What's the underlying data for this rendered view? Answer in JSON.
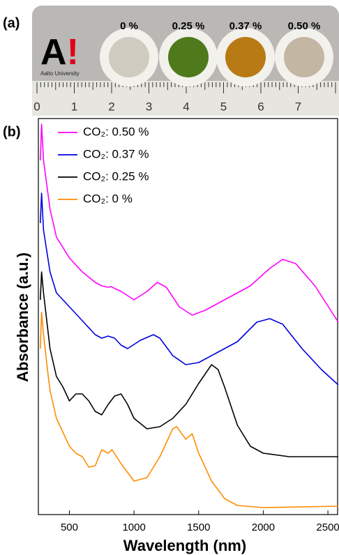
{
  "photo": {
    "panel_label": "(a)",
    "logo": [
      "A",
      "!"
    ],
    "logo_caption": "Aalto University",
    "samples": [
      "0 %",
      "0.25 %",
      "0.37 %",
      "0.50 %"
    ],
    "ruler_numbers": [
      "0",
      "1",
      "2",
      "3",
      "4",
      "5",
      "6",
      "7"
    ]
  },
  "chart_data": {
    "type": "line",
    "panel_label": "(b)",
    "x_label": "Wavelength (nm)",
    "y_label": "Absorbance (a.u.)",
    "xlim": [
      260,
      2575
    ],
    "xticks": [
      500,
      1000,
      1500,
      2000,
      2500
    ],
    "ylim": [
      0,
      568
    ],
    "legend": "upper left",
    "series": [
      {
        "name": "CO₂: 0.50 %",
        "color": "#ff00ff",
        "x": [
          275,
          285,
          300,
          350,
          400,
          500,
          600,
          700,
          750,
          800,
          820,
          900,
          1000,
          1100,
          1180,
          1250,
          1350,
          1450,
          1550,
          1700,
          1900,
          2050,
          2150,
          2250,
          2400,
          2580
        ],
        "values": [
          508,
          560,
          508,
          438,
          398,
          368,
          348,
          333,
          328,
          326,
          327,
          320,
          308,
          320,
          333,
          326,
          298,
          286,
          293,
          308,
          328,
          353,
          366,
          360,
          328,
          276
        ]
      },
      {
        "name": "CO₂: 0.37 %",
        "color": "#0000e0",
        "x": [
          275,
          285,
          300,
          350,
          400,
          500,
          600,
          700,
          750,
          800,
          850,
          900,
          950,
          1050,
          1150,
          1200,
          1300,
          1400,
          1500,
          1650,
          1800,
          1950,
          2050,
          2150,
          2300,
          2450,
          2580
        ],
        "values": [
          418,
          461,
          408,
          348,
          318,
          298,
          278,
          258,
          253,
          256,
          253,
          243,
          238,
          250,
          258,
          253,
          228,
          215,
          218,
          233,
          248,
          276,
          281,
          273,
          238,
          208,
          186
        ]
      },
      {
        "name": "CO₂: 0.25 %",
        "color": "#000000",
        "x": [
          275,
          285,
          300,
          350,
          400,
          450,
          500,
          550,
          600,
          650,
          700,
          750,
          800,
          850,
          900,
          950,
          1000,
          1100,
          1200,
          1300,
          1400,
          1500,
          1600,
          1650,
          1700,
          1800,
          1900,
          2000,
          2200,
          2580
        ],
        "values": [
          308,
          348,
          318,
          238,
          198,
          183,
          163,
          173,
          173,
          163,
          148,
          143,
          158,
          170,
          173,
          158,
          138,
          123,
          126,
          138,
          158,
          188,
          215,
          208,
          183,
          128,
          98,
          88,
          83,
          83
        ]
      },
      {
        "name": "CO₂: 0 %",
        "color": "#ff8c00",
        "x": [
          275,
          285,
          300,
          330,
          350,
          400,
          450,
          500,
          550,
          600,
          650,
          700,
          750,
          800,
          830,
          900,
          1000,
          1100,
          1200,
          1300,
          1330,
          1400,
          1450,
          1500,
          1600,
          1700,
          1800,
          2000,
          2580
        ],
        "values": [
          238,
          290,
          258,
          208,
          178,
          138,
          118,
          98,
          88,
          83,
          68,
          70,
          93,
          88,
          93,
          73,
          48,
          53,
          83,
          123,
          126,
          108,
          116,
          88,
          48,
          23,
          13,
          10,
          12
        ]
      }
    ]
  }
}
